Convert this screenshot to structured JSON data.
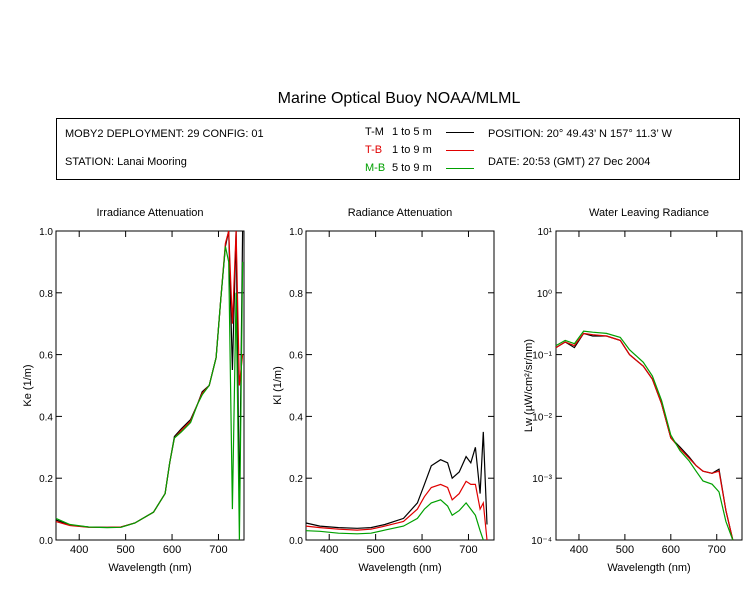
{
  "title": "Marine Optical Buoy NOAA/MLML",
  "info": {
    "deployment": "MOBY2 DEPLOYMENT: 29 CONFIG: 01",
    "station": "STATION: Lanai Mooring",
    "position": "POSITION: 20° 49.43’ N   157° 11.3’ W",
    "date": "DATE: 20:53 (GMT) 27 Dec 2004"
  },
  "legend": [
    {
      "code": "T-M",
      "range": "1 to 5  m",
      "color": "#000000"
    },
    {
      "code": "T-B",
      "range": "1 to 9  m",
      "color": "#e00000"
    },
    {
      "code": "M-B",
      "range": "5 to 9  m",
      "color": "#00a000"
    }
  ],
  "chart_data": [
    {
      "type": "line",
      "title": "Irradiance Attenuation",
      "xlabel": "Wavelength (nm)",
      "ylabel": "Ke  (1/m)",
      "xlim": [
        350,
        755
      ],
      "ylim": [
        0,
        1.0
      ],
      "xticks": [
        "400",
        "500",
        "600",
        "700"
      ],
      "yticks": [
        "0.0",
        "0.2",
        "0.4",
        "0.6",
        "0.8",
        "1.0"
      ],
      "series": [
        {
          "name": "T-M",
          "x": [
            350,
            380,
            420,
            460,
            490,
            520,
            560,
            585,
            595,
            605,
            620,
            640,
            655,
            665,
            680,
            695,
            705,
            715,
            722,
            730,
            738,
            745,
            752
          ],
          "y": [
            0.065,
            0.048,
            0.042,
            0.041,
            0.042,
            0.055,
            0.09,
            0.15,
            0.25,
            0.335,
            0.36,
            0.39,
            0.44,
            0.48,
            0.5,
            0.59,
            0.78,
            0.95,
            1.0,
            0.55,
            1.0,
            0.1,
            1.0
          ]
        },
        {
          "name": "T-B",
          "x": [
            350,
            380,
            420,
            460,
            490,
            520,
            560,
            585,
            595,
            605,
            620,
            640,
            655,
            665,
            680,
            695,
            705,
            715,
            722,
            730,
            738,
            745,
            752
          ],
          "y": [
            0.06,
            0.047,
            0.041,
            0.041,
            0.042,
            0.055,
            0.09,
            0.15,
            0.25,
            0.33,
            0.355,
            0.385,
            0.44,
            0.475,
            0.5,
            0.59,
            0.78,
            0.96,
            1.0,
            0.7,
            1.0,
            0.5,
            0.6
          ]
        },
        {
          "name": "M-B",
          "x": [
            350,
            380,
            420,
            460,
            490,
            520,
            560,
            585,
            595,
            605,
            620,
            640,
            655,
            665,
            680,
            695,
            705,
            715,
            722,
            730,
            738,
            745,
            752
          ],
          "y": [
            0.07,
            0.05,
            0.042,
            0.04,
            0.041,
            0.055,
            0.09,
            0.15,
            0.25,
            0.33,
            0.35,
            0.38,
            0.44,
            0.47,
            0.5,
            0.59,
            0.78,
            0.95,
            0.9,
            0.1,
            0.8,
            0.0,
            0.9
          ]
        }
      ]
    },
    {
      "type": "line",
      "title": "Radiance Attenuation",
      "xlabel": "Wavelength (nm)",
      "ylabel": "Kl  (1/m)",
      "xlim": [
        350,
        755
      ],
      "ylim": [
        0,
        1.0
      ],
      "xticks": [
        "400",
        "500",
        "600",
        "700"
      ],
      "yticks": [
        "0.0",
        "0.2",
        "0.4",
        "0.6",
        "0.8",
        "1.0"
      ],
      "series": [
        {
          "name": "T-M",
          "x": [
            350,
            380,
            420,
            460,
            490,
            520,
            560,
            590,
            605,
            620,
            640,
            655,
            665,
            680,
            695,
            705,
            715,
            725,
            732,
            740
          ],
          "y": [
            0.055,
            0.045,
            0.04,
            0.038,
            0.04,
            0.05,
            0.07,
            0.12,
            0.18,
            0.24,
            0.26,
            0.25,
            0.2,
            0.22,
            0.27,
            0.25,
            0.3,
            0.15,
            0.35,
            0.05
          ]
        },
        {
          "name": "T-B",
          "x": [
            350,
            380,
            420,
            460,
            490,
            520,
            560,
            590,
            605,
            620,
            640,
            655,
            665,
            680,
            695,
            705,
            715,
            725,
            732,
            740
          ],
          "y": [
            0.045,
            0.04,
            0.035,
            0.032,
            0.035,
            0.045,
            0.06,
            0.1,
            0.14,
            0.17,
            0.18,
            0.17,
            0.13,
            0.15,
            0.19,
            0.18,
            0.18,
            0.1,
            0.12,
            0.0
          ]
        },
        {
          "name": "M-B",
          "x": [
            350,
            380,
            420,
            460,
            490,
            520,
            560,
            590,
            605,
            620,
            640,
            655,
            665,
            680,
            695,
            705,
            715,
            725,
            732
          ],
          "y": [
            0.03,
            0.028,
            0.022,
            0.02,
            0.022,
            0.032,
            0.045,
            0.07,
            0.1,
            0.12,
            0.13,
            0.11,
            0.08,
            0.095,
            0.12,
            0.1,
            0.08,
            0.03,
            0.0
          ]
        }
      ]
    },
    {
      "type": "line",
      "title": "Water Leaving Radiance",
      "xlabel": "Wavelength (nm)",
      "ylabel": "Lw  (µW/cm²/sr/nm)",
      "xlim": [
        350,
        755
      ],
      "ylim": [
        0.0001,
        10
      ],
      "yscale": "log",
      "xticks": [
        "400",
        "500",
        "600",
        "700"
      ],
      "yticks": [
        "10⁻⁴",
        "10⁻³",
        "10⁻²",
        "10⁻¹",
        "10⁰",
        "10¹"
      ],
      "series": [
        {
          "name": "T-M",
          "x": [
            350,
            370,
            390,
            410,
            430,
            460,
            490,
            510,
            540,
            560,
            580,
            600,
            620,
            640,
            655,
            670,
            690,
            705,
            720,
            735
          ],
          "y": [
            0.13,
            0.16,
            0.13,
            0.22,
            0.2,
            0.2,
            0.17,
            0.1,
            0.065,
            0.04,
            0.016,
            0.0045,
            0.0032,
            0.0022,
            0.0016,
            0.0013,
            0.0012,
            0.0014,
            0.0003,
            8e-05
          ]
        },
        {
          "name": "T-B",
          "x": [
            350,
            370,
            390,
            410,
            430,
            460,
            490,
            510,
            540,
            560,
            580,
            600,
            620,
            640,
            655,
            670,
            690,
            705,
            720,
            735
          ],
          "y": [
            0.13,
            0.16,
            0.14,
            0.22,
            0.21,
            0.2,
            0.17,
            0.1,
            0.065,
            0.04,
            0.016,
            0.0045,
            0.003,
            0.0021,
            0.0016,
            0.0013,
            0.0012,
            0.0013,
            0.0003,
            0.0001
          ]
        },
        {
          "name": "M-B",
          "x": [
            350,
            370,
            390,
            410,
            430,
            460,
            490,
            510,
            540,
            560,
            580,
            600,
            620,
            640,
            655,
            670,
            690,
            705,
            720,
            735
          ],
          "y": [
            0.14,
            0.17,
            0.15,
            0.24,
            0.23,
            0.22,
            0.19,
            0.12,
            0.075,
            0.045,
            0.018,
            0.005,
            0.0028,
            0.0019,
            0.0013,
            0.0009,
            0.0008,
            0.0006,
            0.0002,
            8e-05
          ]
        }
      ]
    }
  ]
}
